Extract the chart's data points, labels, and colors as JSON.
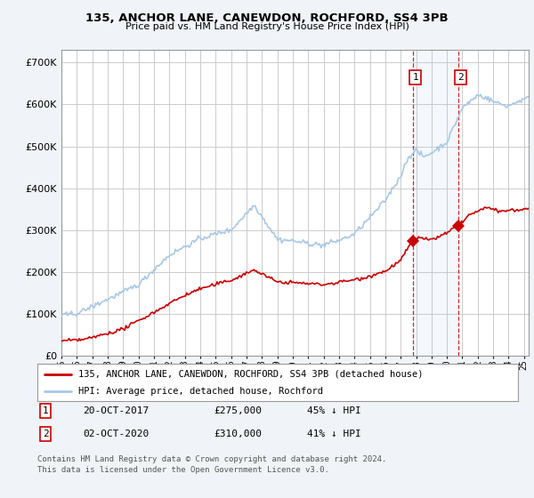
{
  "title": "135, ANCHOR LANE, CANEWDON, ROCHFORD, SS4 3PB",
  "subtitle": "Price paid vs. HM Land Registry's House Price Index (HPI)",
  "legend_entry1": "135, ANCHOR LANE, CANEWDON, ROCHFORD, SS4 3PB (detached house)",
  "legend_entry2": "HPI: Average price, detached house, Rochford",
  "annotation1_label": "1",
  "annotation1_date": "20-OCT-2017",
  "annotation1_price": "£275,000",
  "annotation1_pct": "45% ↓ HPI",
  "annotation2_label": "2",
  "annotation2_date": "02-OCT-2020",
  "annotation2_price": "£310,000",
  "annotation2_pct": "41% ↓ HPI",
  "footnote": "Contains HM Land Registry data © Crown copyright and database right 2024.\nThis data is licensed under the Open Government Licence v3.0.",
  "hpi_color": "#a8c8e8",
  "price_color": "#cc0000",
  "background_color": "#f0f4f8",
  "plot_bg": "#ffffff",
  "grid_color": "#cccccc",
  "sale1_year": 2017.8,
  "sale2_year": 2020.75,
  "sale1_price": 275000,
  "sale2_price": 310000,
  "ylim": [
    0,
    730000
  ],
  "yticks": [
    0,
    100000,
    200000,
    300000,
    400000,
    500000,
    600000,
    700000
  ],
  "xmin": 1995,
  "xmax": 2025.3
}
